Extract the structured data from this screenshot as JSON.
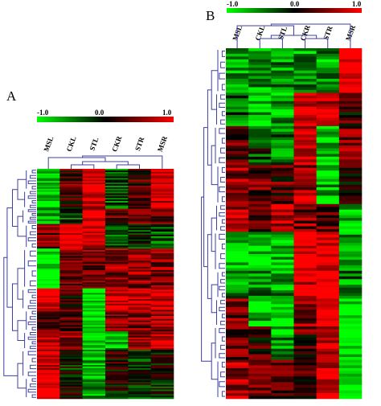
{
  "figure": {
    "panels": [
      {
        "id": "A",
        "label": "A",
        "scale": {
          "min_label": "-1.0",
          "mid_label": "0.0",
          "max_label": "1.0"
        },
        "columns": [
          "MSL",
          "CKL",
          "STL",
          "CKR",
          "STR",
          "MSR"
        ]
      },
      {
        "id": "B",
        "label": "B",
        "scale": {
          "min_label": "-1.0",
          "mid_label": "0.0",
          "max_label": "1.0"
        },
        "columns": [
          "MSL",
          "CKL",
          "STL",
          "CKR",
          "STR",
          "MSR"
        ]
      }
    ],
    "colors": {
      "low": "#00ff00",
      "mid": "#000000",
      "high": "#ff0000",
      "dendrogram": "#3f3fa0"
    }
  },
  "chart_data": [
    {
      "type": "heatmap",
      "panel": "A",
      "columns": [
        "MSL",
        "CKL",
        "STL",
        "CKR",
        "STR",
        "MSR"
      ],
      "value_range": [
        -1.0,
        1.0
      ],
      "row_blocks": [
        {
          "rows": 14,
          "values": [
            -0.9,
            0.3,
            1.0,
            -0.4,
            0.3,
            0.9
          ]
        },
        {
          "rows": 12,
          "values": [
            -0.9,
            0.2,
            0.8,
            -0.3,
            0.2,
            0.7
          ]
        },
        {
          "rows": 10,
          "values": [
            -0.8,
            -0.2,
            0.9,
            0.3,
            0.4,
            0.3
          ]
        },
        {
          "rows": 16,
          "values": [
            0.4,
            0.9,
            0.9,
            -0.3,
            -0.2,
            -0.3
          ]
        },
        {
          "rows": 26,
          "values": [
            -1.0,
            0.45,
            0.45,
            0.5,
            0.5,
            0.5
          ]
        },
        {
          "rows": 14,
          "values": [
            1.0,
            0.2,
            -0.9,
            0.9,
            0.9,
            0.9
          ]
        },
        {
          "rows": 14,
          "values": [
            0.3,
            0.4,
            -0.9,
            0.5,
            0.5,
            0.6
          ]
        },
        {
          "rows": 12,
          "values": [
            0.7,
            0.6,
            -0.9,
            -0.7,
            0.5,
            0.9
          ]
        },
        {
          "rows": 18,
          "values": [
            0.9,
            -0.1,
            -0.7,
            0.1,
            -0.2,
            0.0
          ]
        },
        {
          "rows": 14,
          "values": [
            0.9,
            0.1,
            -0.6,
            0.0,
            -0.1,
            -0.2
          ]
        }
      ]
    },
    {
      "type": "heatmap",
      "panel": "B",
      "columns": [
        "MSL",
        "CKL",
        "STL",
        "CKR",
        "STR",
        "MSR"
      ],
      "value_range": [
        -1.0,
        1.0
      ],
      "row_blocks": [
        {
          "rows": 16,
          "values": [
            -0.6,
            -0.6,
            -0.6,
            -0.6,
            -0.6,
            1.0
          ]
        },
        {
          "rows": 12,
          "values": [
            -0.4,
            -0.7,
            -0.7,
            0.9,
            0.8,
            0.2
          ]
        },
        {
          "rows": 14,
          "values": [
            0.3,
            -0.2,
            -0.4,
            0.9,
            -0.8,
            0.5
          ]
        },
        {
          "rows": 14,
          "values": [
            0.5,
            0.4,
            0.3,
            0.6,
            -0.7,
            0.2
          ]
        },
        {
          "rows": 10,
          "values": [
            0.6,
            0.5,
            0.7,
            0.5,
            0.3,
            -0.8
          ]
        },
        {
          "rows": 14,
          "values": [
            -0.9,
            -0.9,
            -0.8,
            1.0,
            1.0,
            -0.7
          ]
        },
        {
          "rows": 10,
          "values": [
            -0.6,
            -0.6,
            -0.6,
            0.9,
            1.0,
            -0.5
          ]
        },
        {
          "rows": 10,
          "values": [
            0.4,
            -0.8,
            -0.9,
            0.5,
            1.0,
            -0.9
          ]
        },
        {
          "rows": 12,
          "values": [
            0.4,
            0.2,
            -0.6,
            0.3,
            0.9,
            -1.0
          ]
        },
        {
          "rows": 14,
          "values": [
            0.6,
            0.4,
            0.3,
            0.1,
            0.8,
            -1.0
          ]
        }
      ]
    }
  ]
}
